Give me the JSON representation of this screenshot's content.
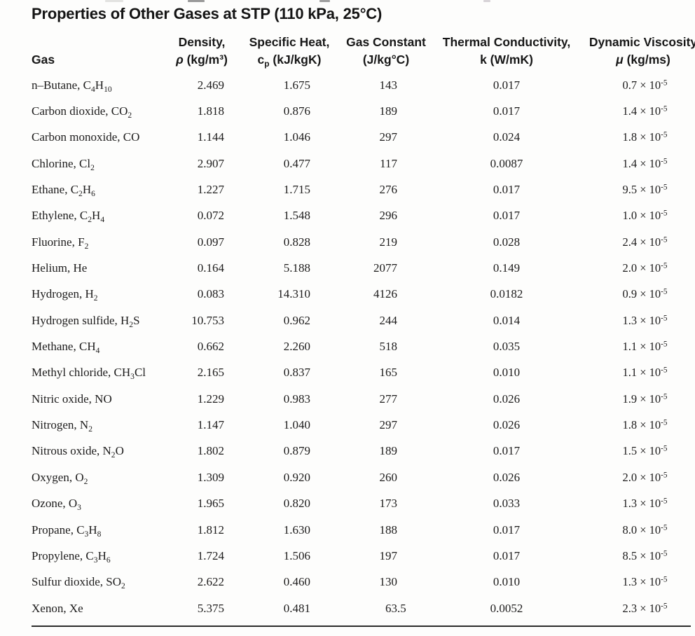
{
  "title": "Properties of Other Gases at STP (110 kPa, 25°C)",
  "table": {
    "columns": [
      {
        "id": "gas",
        "line1": "",
        "line2": "Gas"
      },
      {
        "id": "density",
        "line1": "Density,",
        "line2": "*ρ* (kg/m³)"
      },
      {
        "id": "cp",
        "line1": "Specific Heat,",
        "line2": "c_{p} (kJ/kgK)"
      },
      {
        "id": "R",
        "line1": "Gas Constant",
        "line2": "(J/kg°C)"
      },
      {
        "id": "k",
        "line1": "Thermal Conductivity,",
        "line2": "k (W/mK)"
      },
      {
        "id": "mu",
        "line1": "Dynamic Viscosity",
        "line2": "*μ* (kg/ms)"
      }
    ],
    "rows": [
      {
        "gas": "n–Butane, C_{4}H_{10}",
        "density": "2.469",
        "cp": "1.675",
        "R": "143",
        "k": "0.017",
        "mu": "0.7 × 10^{-5}"
      },
      {
        "gas": "Carbon dioxide, CO_{2}",
        "density": "1.818",
        "cp": "0.876",
        "R": "189",
        "k": "0.017",
        "mu": "1.4 × 10^{-5}"
      },
      {
        "gas": "Carbon monoxide, CO",
        "density": "1.144",
        "cp": "1.046",
        "R": "297",
        "k": "0.024",
        "mu": "1.8 × 10^{-5}"
      },
      {
        "gas": "Chlorine, Cl_{2}",
        "density": "2.907",
        "cp": "0.477",
        "R": "117",
        "k": "0.0087",
        "mu": "1.4 × 10^{-5}"
      },
      {
        "gas": "Ethane, C_{2}H_{6}",
        "density": "1.227",
        "cp": "1.715",
        "R": "276",
        "k": "0.017",
        "mu": "9.5 × 10^{-5}"
      },
      {
        "gas": "Ethylene, C_{2}H_{4}",
        "density": "0.072",
        "cp": "1.548",
        "R": "296",
        "k": "0.017",
        "mu": "1.0 × 10^{-5}"
      },
      {
        "gas": "Fluorine, F_{2}",
        "density": "0.097",
        "cp": "0.828",
        "R": "219",
        "k": "0.028",
        "mu": "2.4 × 10^{-5}"
      },
      {
        "gas": "Helium, He",
        "density": "0.164",
        "cp": "5.188",
        "R": "2077",
        "k": "0.149",
        "mu": "2.0 × 10^{-5}"
      },
      {
        "gas": "Hydrogen, H_{2}",
        "density": "0.083",
        "cp": "14.310",
        "R": "4126",
        "k": "0.0182",
        "mu": "0.9 × 10^{-5}"
      },
      {
        "gas": "Hydrogen sulfide, H_{2}S",
        "density": "10.753",
        "cp": "0.962",
        "R": "244",
        "k": "0.014",
        "mu": "1.3 × 10^{-5}"
      },
      {
        "gas": "Methane, CH_{4}",
        "density": "0.662",
        "cp": "2.260",
        "R": "518",
        "k": "0.035",
        "mu": "1.1 × 10^{-5}"
      },
      {
        "gas": "Methyl chloride, CH_{3}Cl",
        "density": "2.165",
        "cp": "0.837",
        "R": "165",
        "k": "0.010",
        "mu": "1.1 × 10^{-5}"
      },
      {
        "gas": "Nitric oxide, NO",
        "density": "1.229",
        "cp": "0.983",
        "R": "277",
        "k": "0.026",
        "mu": "1.9 × 10^{-5}"
      },
      {
        "gas": "Nitrogen, N_{2}",
        "density": "1.147",
        "cp": "1.040",
        "R": "297",
        "k": "0.026",
        "mu": "1.8 × 10^{-5}"
      },
      {
        "gas": "Nitrous oxide, N_{2}O",
        "density": "1.802",
        "cp": "0.879",
        "R": "189",
        "k": "0.017",
        "mu": "1.5 × 10^{-5}"
      },
      {
        "gas": "Oxygen, O_{2}",
        "density": "1.309",
        "cp": "0.920",
        "R": "260",
        "k": "0.026",
        "mu": "2.0 × 10^{-5}"
      },
      {
        "gas": "Ozone, O_{3}",
        "density": "1.965",
        "cp": "0.820",
        "R": "173",
        "k": "0.033",
        "mu": "1.3 × 10^{-5}"
      },
      {
        "gas": "Propane, C_{3}H_{8}",
        "density": "1.812",
        "cp": "1.630",
        "R": "188",
        "k": "0.017",
        "mu": "8.0 × 10^{-5}"
      },
      {
        "gas": "Propylene, C_{3}H_{6}",
        "density": "1.724",
        "cp": "1.506",
        "R": "197",
        "k": "0.017",
        "mu": "8.5 × 10^{-5}"
      },
      {
        "gas": "Sulfur dioxide, SO_{2}",
        "density": "2.622",
        "cp": "0.460",
        "R": "130",
        "k": "0.010",
        "mu": "1.3 × 10^{-5}"
      },
      {
        "gas": "Xenon, Xe",
        "density": "5.375",
        "cp": "0.481",
        "R": "63.5",
        "k": "0.0052",
        "mu": "2.3 × 10^{-5}"
      }
    ]
  },
  "text_color": "#1d1c1c",
  "background_color": "#fdfdfc"
}
